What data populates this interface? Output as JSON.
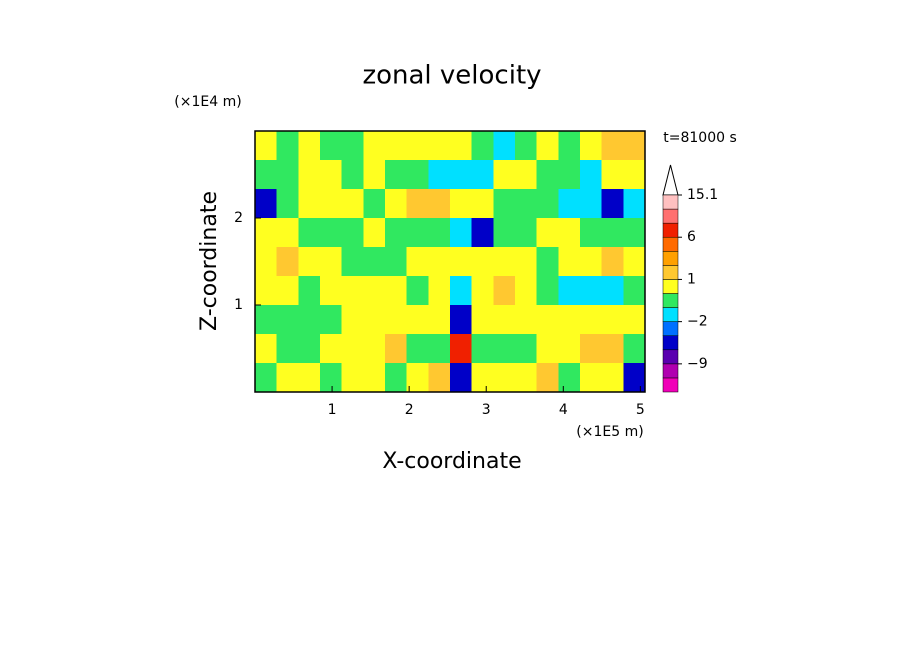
{
  "chart_data": {
    "type": "contour",
    "title": "zonal velocity",
    "x_label": "X-coordinate",
    "y_label": "Z-coordinate",
    "x_unit": "(×1E5 m)",
    "y_unit": "(×1E4 m)",
    "annotation": "t=81000 s",
    "xlim": [
      0,
      5.06
    ],
    "ylim": [
      0,
      3
    ],
    "xticks": [
      1,
      2,
      3,
      4,
      5
    ],
    "yticks": [
      1,
      2
    ],
    "z": [
      [
        0.5,
        -0.5,
        0.5,
        -0.5,
        -0.5,
        0.5,
        0.5,
        0.5,
        0.5,
        0.5,
        -0.5,
        -1.5,
        -0.5,
        0.5,
        -0.5,
        0.5,
        1.5,
        1.5
      ],
      [
        -0.5,
        -0.5,
        0.5,
        0.5,
        -0.5,
        0.5,
        -0.5,
        -0.5,
        -1.5,
        -1.5,
        -1.5,
        0.5,
        0.5,
        -0.5,
        -0.5,
        -1.5,
        0.5,
        0.5
      ],
      [
        -5,
        -0.5,
        0.5,
        0.5,
        0.5,
        -0.5,
        0.5,
        1.5,
        1.5,
        0.5,
        0.5,
        -0.5,
        -0.5,
        -0.5,
        -1.5,
        -1.5,
        -5,
        -1.5
      ],
      [
        0.5,
        0.5,
        -0.5,
        -0.5,
        -0.5,
        0.5,
        -0.5,
        -0.5,
        -0.5,
        -1.5,
        -5,
        -0.5,
        -0.5,
        0.5,
        0.5,
        -0.5,
        -0.5,
        -0.5
      ],
      [
        0.5,
        1.5,
        0.5,
        0.5,
        -0.5,
        -0.5,
        -0.5,
        0.5,
        0.5,
        0.5,
        0.5,
        0.5,
        0.5,
        -0.5,
        0.5,
        0.5,
        1.5,
        0.5
      ],
      [
        0.5,
        0.5,
        -0.5,
        0.5,
        0.5,
        0.5,
        0.5,
        -0.5,
        0.5,
        -1.5,
        0.5,
        1.5,
        0.5,
        -0.5,
        -1.5,
        -1.5,
        -1.5,
        -0.5
      ],
      [
        -0.5,
        -0.5,
        -0.5,
        -0.5,
        0.5,
        0.5,
        0.5,
        0.5,
        0.5,
        -5,
        0.5,
        0.5,
        0.5,
        0.5,
        0.5,
        0.5,
        0.5,
        0.5
      ],
      [
        0.5,
        -0.5,
        -0.5,
        0.5,
        0.5,
        0.5,
        1.5,
        -0.5,
        -0.5,
        7,
        -0.5,
        -0.5,
        -0.5,
        0.5,
        0.5,
        1.5,
        1.5,
        -0.5
      ],
      [
        -0.5,
        0.5,
        0.5,
        -0.5,
        0.5,
        0.5,
        -0.5,
        0.5,
        1.5,
        -5,
        0.5,
        0.5,
        0.5,
        1.5,
        -0.5,
        0.5,
        0.5,
        -5
      ]
    ],
    "colorbar": {
      "levels": [
        -15,
        -12,
        -9,
        -6,
        -3,
        -2,
        -1,
        0,
        1,
        2,
        4,
        6,
        9,
        12,
        15.1
      ],
      "colors": [
        "#f000b8",
        "#b000b0",
        "#5a00b0",
        "#0000c8",
        "#0070ff",
        "#00e0ff",
        "#30e860",
        "#ffff20",
        "#ffc830",
        "#ffa000",
        "#ff6a00",
        "#f02000",
        "#ff7070",
        "#ffc0c0"
      ],
      "ticks": [
        15.1,
        6,
        1,
        {
          "value": -2,
          "label": "−2"
        },
        {
          "value": -9,
          "label": "−9"
        }
      ]
    }
  }
}
